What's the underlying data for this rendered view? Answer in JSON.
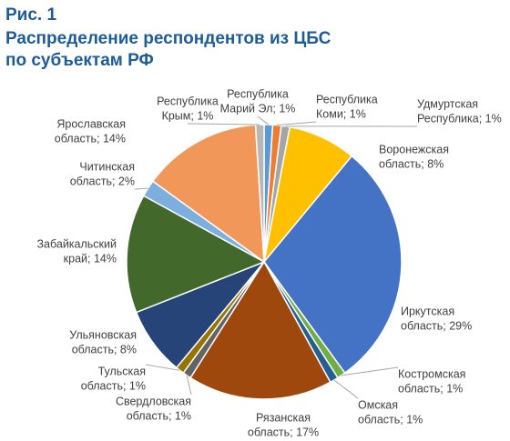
{
  "chart_data": {
    "type": "pie",
    "figure_label": "Рис. 1",
    "title": [
      "Распределение респондентов из ЦБС",
      "по субъектам РФ"
    ],
    "values": [
      1,
      1,
      1,
      8,
      29,
      1,
      1,
      17,
      1,
      1,
      8,
      14,
      2,
      14,
      1
    ],
    "value_labels": [
      [
        "Республика",
        "Марий Эл; 1%"
      ],
      [
        "Республика",
        "Коми; 1%"
      ],
      [
        "Удмуртская",
        "Республика; 1%"
      ],
      [
        "Воронежская",
        "область; 8%"
      ],
      [
        "Иркутская",
        "область; 29%"
      ],
      [
        "Костромская",
        "область; 1%"
      ],
      [
        "Омская",
        "область; 1%"
      ],
      [
        "Рязанская",
        "область; 17%"
      ],
      [
        "Свердловская",
        "область; 1%"
      ],
      [
        "Тульская",
        "область; 1%"
      ],
      [
        "Ульяновская",
        "область; 8%"
      ],
      [
        "Забайкальский",
        "край; 14%"
      ],
      [
        "Читинская",
        "область; 2%"
      ],
      [
        "Ярославская",
        "область; 14%"
      ],
      [
        "Республика",
        "Крым; 1%"
      ]
    ],
    "colors": [
      "#5b9bd5",
      "#ed7d31",
      "#a5a5a5",
      "#ffc000",
      "#4472c4",
      "#70ad47",
      "#255e91",
      "#9e480e",
      "#636363",
      "#997300",
      "#264478",
      "#43682b",
      "#7cafdd",
      "#f1975a",
      "#b7b7b7"
    ]
  }
}
